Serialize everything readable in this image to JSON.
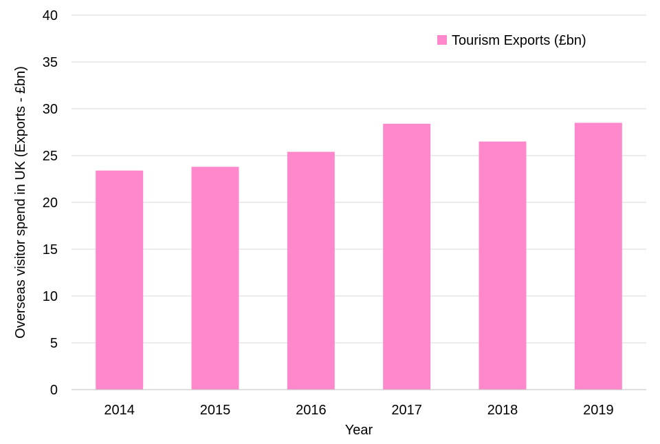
{
  "chart_data": {
    "type": "bar",
    "title": "",
    "xlabel": "Year",
    "ylabel": "Overseas visitor spend in UK (Exports - £bn)",
    "categories": [
      "2014",
      "2015",
      "2016",
      "2017",
      "2018",
      "2019"
    ],
    "series": [
      {
        "name": "Tourism Exports (£bn)",
        "values": [
          23.4,
          23.8,
          25.4,
          28.4,
          26.5,
          28.5
        ],
        "color": "#ff88cc"
      }
    ],
    "ylim": [
      0,
      40
    ],
    "yticks": [
      "0",
      "5",
      "10",
      "15",
      "20",
      "25",
      "30",
      "35",
      "40"
    ],
    "grid": true,
    "legend": "top-right"
  }
}
